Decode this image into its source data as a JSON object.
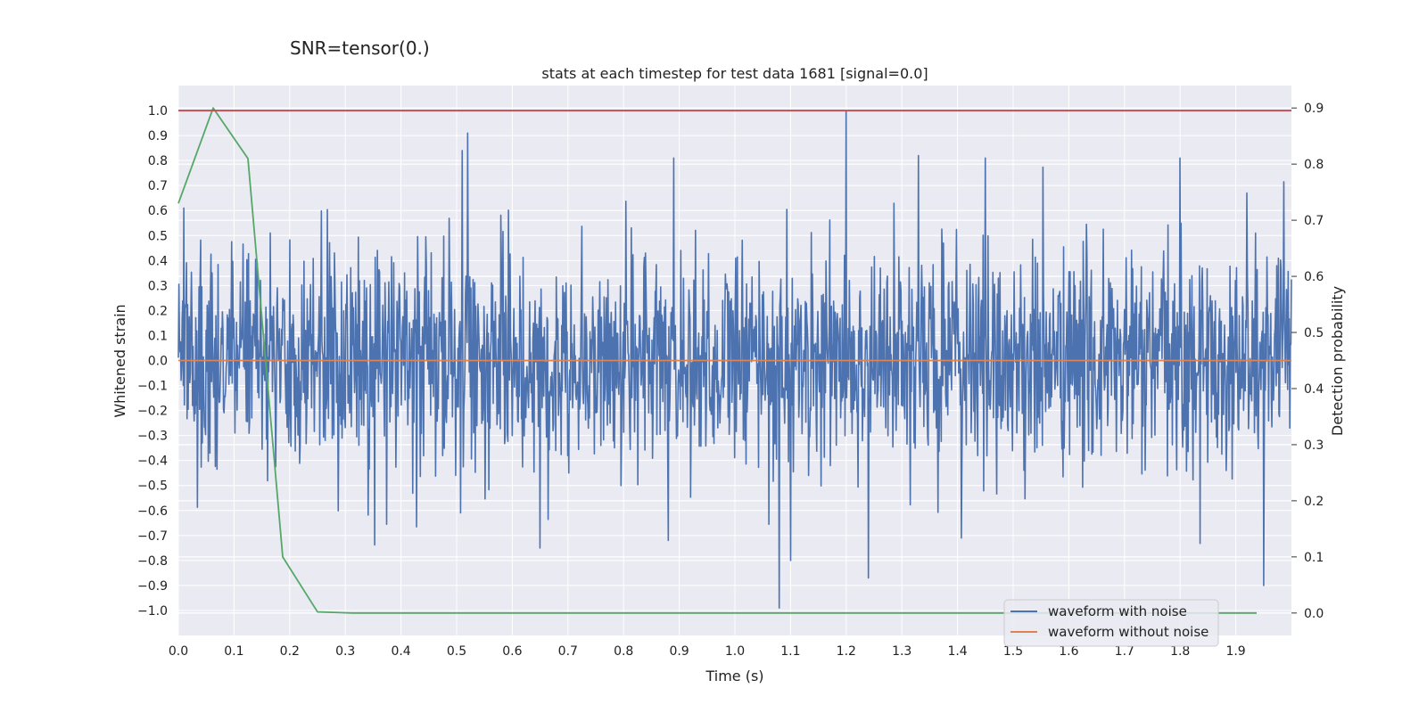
{
  "figure": {
    "suptitle": "SNR=tensor(0.)"
  },
  "chart_data": {
    "type": "line",
    "title": "stats at each timestep for test data 1681 [signal=0.0]",
    "xlabel": "Time (s)",
    "ylabel": "Whitened strain",
    "y2label": "Detection probability",
    "xlim": [
      0.0,
      2.0
    ],
    "ylim": [
      -1.1,
      1.1
    ],
    "y2lim": [
      -0.04,
      0.94
    ],
    "x_ticks": [
      "0.0",
      "0.1",
      "0.2",
      "0.3",
      "0.4",
      "0.5",
      "0.6",
      "0.7",
      "0.8",
      "0.9",
      "1.0",
      "1.1",
      "1.2",
      "1.3",
      "1.4",
      "1.5",
      "1.6",
      "1.7",
      "1.8",
      "1.9"
    ],
    "y_ticks": [
      "1.0",
      "0.9",
      "0.8",
      "0.7",
      "0.6",
      "0.5",
      "0.4",
      "0.3",
      "0.2",
      "0.1",
      "0.0",
      "−0.1",
      "−0.2",
      "−0.3",
      "−0.4",
      "−0.5",
      "−0.6",
      "−0.7",
      "−0.8",
      "−0.9",
      "−1.0"
    ],
    "y2_ticks": [
      "0.9",
      "0.8",
      "0.7",
      "0.6",
      "0.5",
      "0.4",
      "0.3",
      "0.2",
      "0.1",
      "0.0"
    ],
    "grid": true,
    "legend_placement": "lower-right",
    "series": [
      {
        "name": "waveform with noise",
        "color": "#4c72b0",
        "axis": "left",
        "kind": "noise",
        "noise_std": 0.22,
        "noise_min": -0.99,
        "noise_max": 1.0,
        "spikes": [
          {
            "x": 0.01,
            "y": 0.61
          },
          {
            "x": 0.51,
            "y": 0.84
          },
          {
            "x": 0.52,
            "y": 0.91
          },
          {
            "x": 0.65,
            "y": -0.75
          },
          {
            "x": 0.88,
            "y": -0.72
          },
          {
            "x": 0.89,
            "y": 0.81
          },
          {
            "x": 1.08,
            "y": -0.99
          },
          {
            "x": 1.1,
            "y": -0.8
          },
          {
            "x": 1.2,
            "y": 1.0
          },
          {
            "x": 1.24,
            "y": -0.87
          },
          {
            "x": 1.33,
            "y": 0.82
          },
          {
            "x": 1.45,
            "y": 0.81
          },
          {
            "x": 1.8,
            "y": 0.81
          },
          {
            "x": 1.95,
            "y": -0.9
          },
          {
            "x": 1.92,
            "y": 0.67
          }
        ]
      },
      {
        "name": "waveform without noise",
        "color": "#dd8452",
        "axis": "left",
        "x": [
          0.0,
          2.0
        ],
        "y": [
          0.0,
          0.0
        ]
      },
      {
        "name": "",
        "color": "#55a868",
        "axis": "right",
        "x": [
          0.0,
          0.0625,
          0.125,
          0.1875,
          0.25,
          0.3125,
          0.5,
          1.0,
          1.5,
          1.9375
        ],
        "y": [
          0.73,
          0.9,
          0.81,
          0.1,
          0.002,
          0.0,
          0.0,
          0.0,
          0.0,
          0.0
        ]
      },
      {
        "name": "",
        "color": "#c44e52",
        "axis": "left",
        "x": [
          0.0,
          2.0
        ],
        "y": [
          1.0,
          1.0
        ]
      }
    ]
  }
}
